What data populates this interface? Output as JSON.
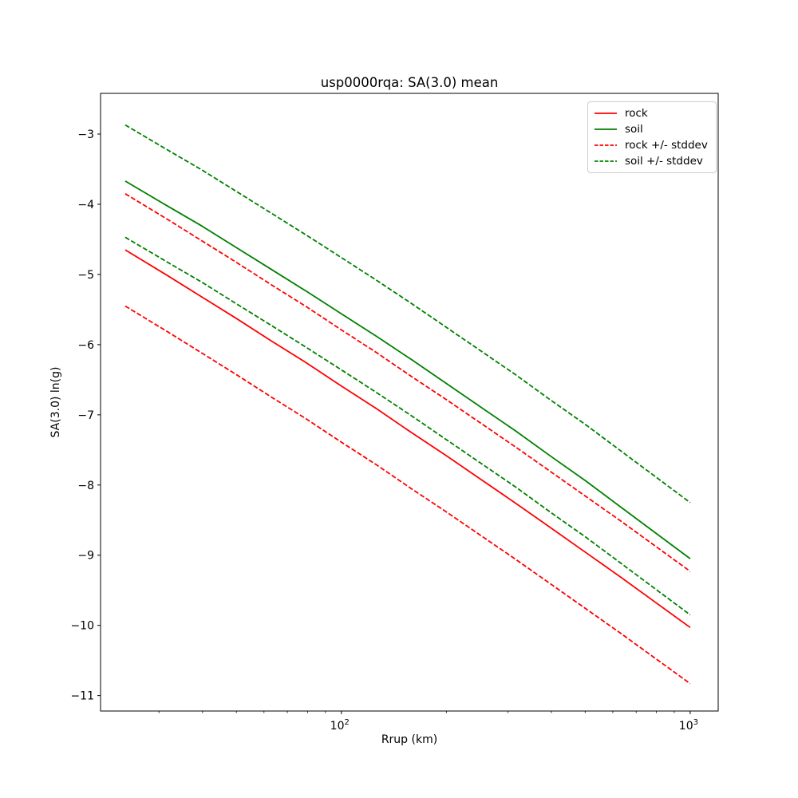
{
  "figure": {
    "title": "usp0000rqa: SA(3.0) mean"
  },
  "chart_data": {
    "type": "line",
    "title": "usp0000rqa: SA(3.0) mean",
    "xlabel": "Rrup (km)",
    "ylabel": "SA(3.0) ln(g)",
    "xscale": "log",
    "xlim": [
      20.4,
      1203
    ],
    "ylim": [
      -11.22,
      -2.42
    ],
    "grid": false,
    "stddev_offset": 0.8,
    "x": [
      24,
      31.6,
      39.8,
      50.1,
      63.1,
      79.4,
      100,
      125.9,
      158.5,
      199.5,
      251.2,
      316.2,
      398.1,
      501.2,
      631,
      794.3,
      1000
    ],
    "series": [
      {
        "name": "rock",
        "color": "#ff0000",
        "style": "solid",
        "values": [
          -4.65,
          -5.01,
          -5.32,
          -5.63,
          -5.95,
          -6.26,
          -6.59,
          -6.91,
          -7.25,
          -7.58,
          -7.92,
          -8.26,
          -8.61,
          -8.96,
          -9.31,
          -9.67,
          -10.03
        ]
      },
      {
        "name": "soil",
        "color": "#008000",
        "style": "solid",
        "values": [
          -3.67,
          -4.02,
          -4.31,
          -4.62,
          -4.93,
          -5.24,
          -5.56,
          -5.88,
          -6.21,
          -6.55,
          -6.89,
          -7.23,
          -7.59,
          -7.94,
          -8.31,
          -8.68,
          -9.05
        ]
      },
      {
        "name": "rock + stddev",
        "color": "#ff0000",
        "style": "dashed",
        "values": [
          -3.85,
          -4.21,
          -4.52,
          -4.83,
          -5.15,
          -5.46,
          -5.79,
          -6.11,
          -6.45,
          -6.78,
          -7.12,
          -7.46,
          -7.81,
          -8.16,
          -8.51,
          -8.87,
          -9.23
        ]
      },
      {
        "name": "rock - stddev",
        "color": "#ff0000",
        "style": "dashed",
        "values": [
          -5.45,
          -5.81,
          -6.12,
          -6.43,
          -6.75,
          -7.06,
          -7.39,
          -7.71,
          -8.05,
          -8.38,
          -8.72,
          -9.06,
          -9.41,
          -9.76,
          -10.11,
          -10.47,
          -10.83
        ]
      },
      {
        "name": "soil + stddev",
        "color": "#008000",
        "style": "dashed",
        "values": [
          -2.87,
          -3.22,
          -3.51,
          -3.82,
          -4.13,
          -4.44,
          -4.76,
          -5.08,
          -5.41,
          -5.75,
          -6.09,
          -6.43,
          -6.79,
          -7.14,
          -7.51,
          -7.88,
          -8.25
        ]
      },
      {
        "name": "soil - stddev",
        "color": "#008000",
        "style": "dashed",
        "values": [
          -4.47,
          -4.82,
          -5.11,
          -5.42,
          -5.73,
          -6.04,
          -6.36,
          -6.68,
          -7.01,
          -7.35,
          -7.69,
          -8.03,
          -8.39,
          -8.74,
          -9.11,
          -9.48,
          -9.85
        ]
      }
    ],
    "xticks_major": [
      {
        "value": 100,
        "base": "10",
        "exponent": "2"
      },
      {
        "value": 1000,
        "base": "10",
        "exponent": "3"
      }
    ],
    "xticks_minor": [
      30,
      40,
      50,
      60,
      70,
      80,
      90,
      200,
      300,
      400,
      500,
      600,
      700,
      800,
      900
    ],
    "yticks": [
      {
        "value": -3,
        "label": "−3"
      },
      {
        "value": -4,
        "label": "−4"
      },
      {
        "value": -5,
        "label": "−5"
      },
      {
        "value": -6,
        "label": "−6"
      },
      {
        "value": -7,
        "label": "−7"
      },
      {
        "value": -8,
        "label": "−8"
      },
      {
        "value": -9,
        "label": "−9"
      },
      {
        "value": -10,
        "label": "−10"
      },
      {
        "value": -11,
        "label": "−11"
      }
    ],
    "legend": {
      "position": "upper right",
      "entries": [
        {
          "label": "rock",
          "color": "#ff0000",
          "style": "solid"
        },
        {
          "label": "soil",
          "color": "#008000",
          "style": "solid"
        },
        {
          "label": "rock +/- stddev",
          "color": "#ff0000",
          "style": "dashed"
        },
        {
          "label": "soil +/- stddev",
          "color": "#008000",
          "style": "dashed"
        }
      ]
    }
  }
}
